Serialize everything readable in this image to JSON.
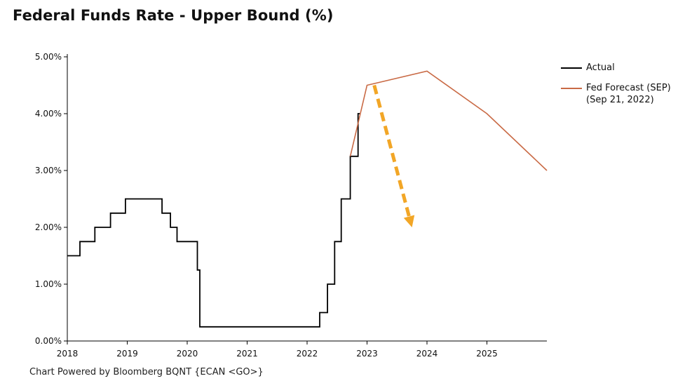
{
  "title": "Federal Funds Rate - Upper Bound (%)",
  "footer": "Chart Powered by Bloomberg BQNT {ECAN <GO>}",
  "chart_data": {
    "type": "line",
    "title": "Federal Funds Rate - Upper Bound (%)",
    "xlabel": "",
    "ylabel": "",
    "xlim": [
      2018.0,
      2026.0
    ],
    "ylim": [
      0,
      5
    ],
    "x_ticks": [
      2018,
      2019,
      2020,
      2021,
      2022,
      2023,
      2024,
      2025
    ],
    "x_tick_labels": [
      "2018",
      "2019",
      "2020",
      "2021",
      "2022",
      "2023",
      "2024",
      "2025"
    ],
    "y_ticks": [
      0,
      1,
      2,
      3,
      4,
      5
    ],
    "y_tick_labels": [
      "0.00%",
      "1.00%",
      "2.00%",
      "3.00%",
      "4.00%",
      "5.00%"
    ],
    "legend_position": "top-right",
    "grid": false,
    "series": [
      {
        "name": "Actual",
        "style": "step",
        "color": "#000000",
        "points": [
          [
            2018.0,
            1.5
          ],
          [
            2018.21,
            1.5
          ],
          [
            2018.21,
            1.75
          ],
          [
            2018.46,
            1.75
          ],
          [
            2018.46,
            2.0
          ],
          [
            2018.72,
            2.0
          ],
          [
            2018.72,
            2.25
          ],
          [
            2018.97,
            2.25
          ],
          [
            2018.97,
            2.5
          ],
          [
            2019.58,
            2.5
          ],
          [
            2019.58,
            2.25
          ],
          [
            2019.72,
            2.25
          ],
          [
            2019.72,
            2.0
          ],
          [
            2019.83,
            2.0
          ],
          [
            2019.83,
            1.75
          ],
          [
            2020.17,
            1.75
          ],
          [
            2020.17,
            1.25
          ],
          [
            2020.21,
            1.25
          ],
          [
            2020.21,
            0.25
          ],
          [
            2022.21,
            0.25
          ],
          [
            2022.21,
            0.5
          ],
          [
            2022.34,
            0.5
          ],
          [
            2022.34,
            1.0
          ],
          [
            2022.46,
            1.0
          ],
          [
            2022.46,
            1.75
          ],
          [
            2022.57,
            1.75
          ],
          [
            2022.57,
            2.5
          ],
          [
            2022.72,
            2.5
          ],
          [
            2022.72,
            3.25
          ],
          [
            2022.85,
            3.25
          ],
          [
            2022.85,
            4.0
          ],
          [
            2022.88,
            4.0
          ]
        ]
      },
      {
        "name": "Fed Forecast (SEP)",
        "name_line2": "(Sep 21, 2022)",
        "style": "line",
        "color": "#c96a45",
        "points": [
          [
            2022.72,
            3.25
          ],
          [
            2023.0,
            4.5
          ],
          [
            2024.0,
            4.75
          ],
          [
            2025.0,
            4.0
          ],
          [
            2026.0,
            3.0
          ]
        ]
      }
    ],
    "annotations": [
      {
        "type": "dashed-arrow",
        "color": "#f2a626",
        "from": [
          2023.12,
          4.5
        ],
        "to": [
          2023.75,
          2.0
        ]
      }
    ]
  }
}
